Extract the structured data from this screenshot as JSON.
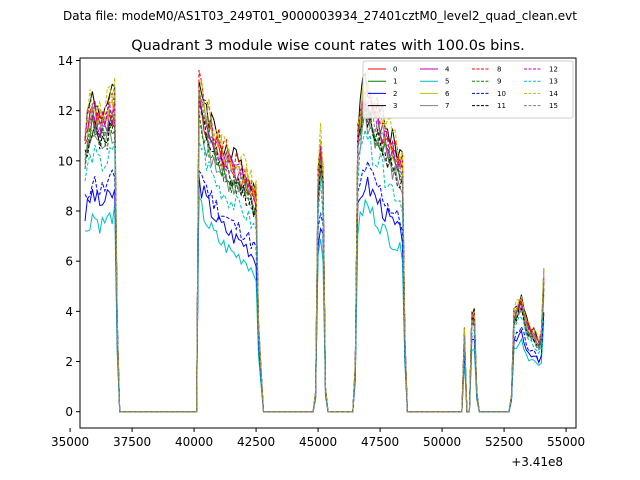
{
  "chart_data": {
    "type": "line",
    "suptitle": "Data file: modeM0/AS1T03_249T01_9000003934_27401cztM0_level2_quad_clean.evt",
    "title": "Quadrant 3 module wise count rates with 100.0s bins.",
    "xlabel": "",
    "ylabel": "",
    "x_offset_label": "+3.41e8",
    "xlim": [
      35400,
      55400
    ],
    "ylim": [
      -0.65,
      14.1
    ],
    "xticks": [
      35000,
      37500,
      40000,
      42500,
      45000,
      47500,
      50000,
      52500,
      55000
    ],
    "xtick_labels": [
      "35000",
      "37500",
      "40000",
      "42500",
      "45000",
      "47500",
      "50000",
      "52500",
      "55000"
    ],
    "yticks": [
      0,
      2,
      4,
      6,
      8,
      10,
      12,
      14
    ],
    "ytick_labels": [
      "0",
      "2",
      "4",
      "6",
      "8",
      "10",
      "12",
      "14"
    ],
    "legend_position": "top-right",
    "segments": [
      {
        "start": 35600,
        "end": 36800,
        "rise": 100,
        "fall": 200,
        "shape": [
          [
            0,
            0.85
          ],
          [
            0.25,
            0.95
          ],
          [
            0.5,
            0.9
          ],
          [
            0.75,
            0.92
          ],
          [
            1,
            0.95
          ]
        ]
      },
      {
        "start": 40200,
        "end": 42500,
        "rise": 100,
        "fall": 300,
        "shape": [
          [
            0,
            1.0
          ],
          [
            0.15,
            0.9
          ],
          [
            0.35,
            0.82
          ],
          [
            0.6,
            0.76
          ],
          [
            0.8,
            0.73
          ],
          [
            1,
            0.66
          ]
        ]
      },
      {
        "start": 45000,
        "end": 45200,
        "rise": 120,
        "fall": 120,
        "shape": [
          [
            0,
            0.72
          ],
          [
            0.5,
            0.82
          ],
          [
            1,
            0.74
          ]
        ]
      },
      {
        "start": 46600,
        "end": 48400,
        "rise": 150,
        "fall": 200,
        "shape": [
          [
            0,
            0.87
          ],
          [
            0.15,
            1.0
          ],
          [
            0.4,
            0.93
          ],
          [
            0.65,
            0.85
          ],
          [
            0.85,
            0.8
          ],
          [
            1,
            0.76
          ]
        ]
      },
      {
        "start": 50850,
        "end": 50900,
        "rise": 40,
        "fall": 60,
        "shape": [
          [
            0,
            0.23
          ],
          [
            1,
            0.25
          ]
        ]
      },
      {
        "start": 51200,
        "end": 51300,
        "rise": 80,
        "fall": 150,
        "shape": [
          [
            0,
            0.3
          ],
          [
            0.5,
            0.38
          ],
          [
            1,
            0.3
          ]
        ]
      },
      {
        "start": 52900,
        "end": 54100,
        "rise": 150,
        "fall": 60,
        "shape": [
          [
            0,
            0.3
          ],
          [
            0.15,
            0.33
          ],
          [
            0.25,
            0.35
          ],
          [
            0.45,
            0.26
          ],
          [
            0.7,
            0.24
          ],
          [
            0.9,
            0.2
          ],
          [
            1,
            0.42
          ]
        ]
      }
    ],
    "series": [
      {
        "name": "0",
        "color": "#ff0000",
        "style": "solid",
        "peak": 12.5,
        "seed": 1
      },
      {
        "name": "1",
        "color": "#008000",
        "style": "solid",
        "peak": 12.2,
        "seed": 2
      },
      {
        "name": "2",
        "color": "#0000ff",
        "style": "solid",
        "peak": 9.2,
        "seed": 3
      },
      {
        "name": "3",
        "color": "#000000",
        "style": "solid",
        "peak": 13.3,
        "seed": 4
      },
      {
        "name": "4",
        "color": "#bf00bf",
        "style": "solid",
        "peak": 12.6,
        "seed": 5
      },
      {
        "name": "5",
        "color": "#00bfbf",
        "style": "solid",
        "peak": 8.3,
        "seed": 6
      },
      {
        "name": "6",
        "color": "#bfbf00",
        "style": "solid",
        "peak": 12.9,
        "seed": 7
      },
      {
        "name": "7",
        "color": "#808080",
        "style": "solid",
        "peak": 11.7,
        "seed": 8
      },
      {
        "name": "8",
        "color": "#ff0000",
        "style": "dashed",
        "peak": 13.1,
        "seed": 9
      },
      {
        "name": "9",
        "color": "#008000",
        "style": "dashed",
        "peak": 11.9,
        "seed": 10
      },
      {
        "name": "10",
        "color": "#0000ff",
        "style": "dashed",
        "peak": 9.8,
        "seed": 11
      },
      {
        "name": "11",
        "color": "#000000",
        "style": "dashed",
        "peak": 12.0,
        "seed": 12
      },
      {
        "name": "12",
        "color": "#bf00bf",
        "style": "dashed",
        "peak": 12.7,
        "seed": 13
      },
      {
        "name": "13",
        "color": "#00bfbf",
        "style": "dashed",
        "peak": 10.9,
        "seed": 14
      },
      {
        "name": "14",
        "color": "#bfbf00",
        "style": "dashed",
        "peak": 13.4,
        "seed": 15
      },
      {
        "name": "15",
        "color": "#808080",
        "style": "dashed",
        "peak": 12.3,
        "seed": 16
      }
    ]
  }
}
